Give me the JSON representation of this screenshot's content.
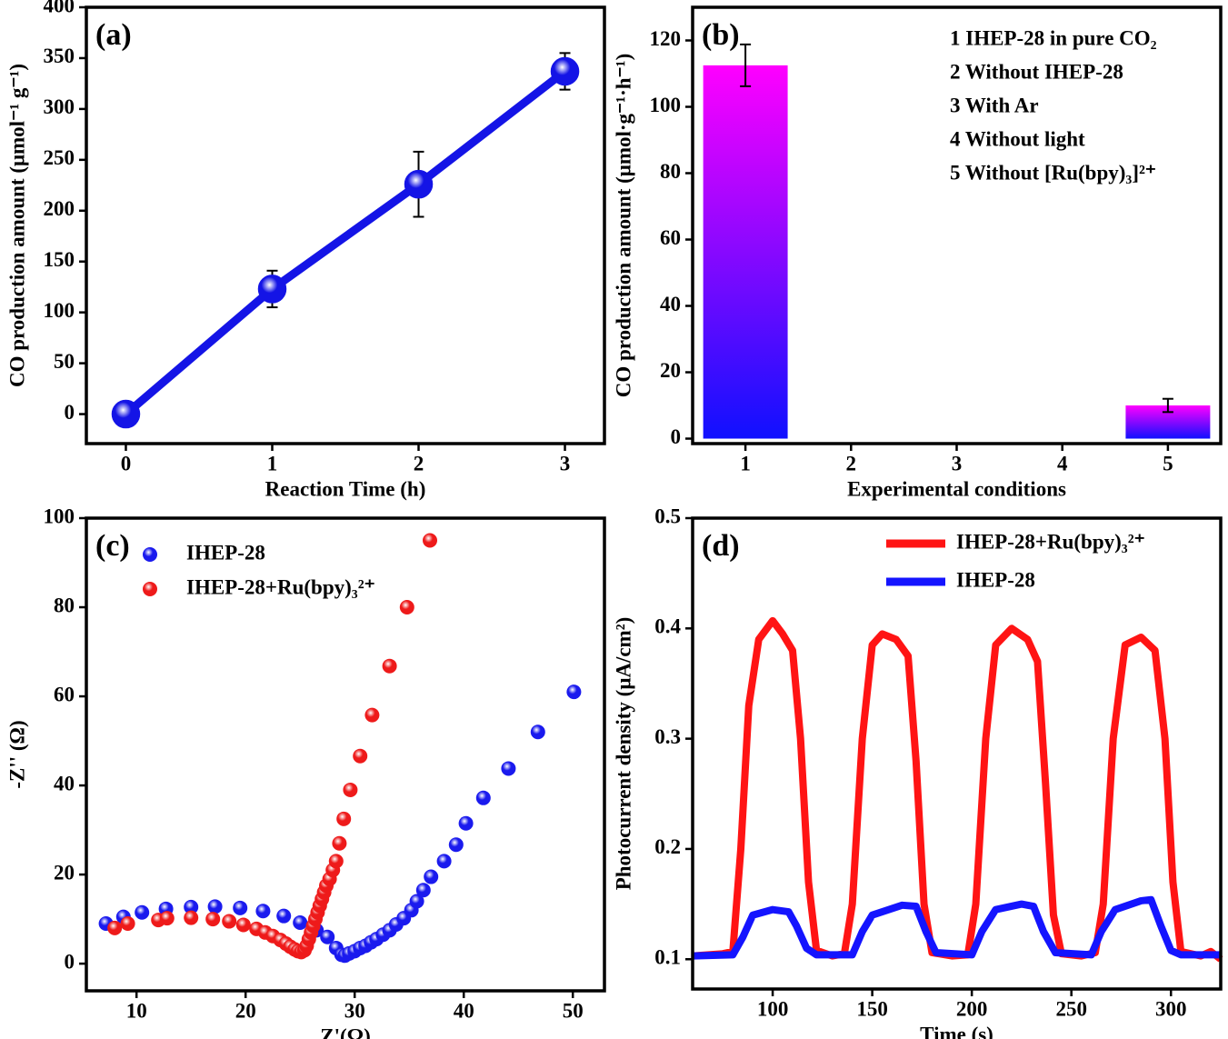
{
  "chart_data": [
    {
      "type": "line",
      "annotation": "(a)",
      "x_label": "Reaction Time (h)",
      "y_label": "CO production amount (μmol⁻¹ g⁻¹)",
      "x": [
        0,
        1,
        2,
        3
      ],
      "marker": "circle",
      "series": [
        {
          "name": "CO",
          "color": "#1414e6",
          "values": [
            0,
            123,
            226,
            337
          ],
          "errors": [
            0,
            18,
            32,
            18
          ]
        }
      ],
      "xlim": [
        -0.27,
        3.27
      ],
      "xticks": [
        0,
        1,
        2,
        3
      ],
      "ylim": [
        -29,
        400
      ],
      "yticks": [
        0,
        50,
        100,
        150,
        200,
        250,
        300,
        350,
        400
      ]
    },
    {
      "type": "bar",
      "annotation": "(b)",
      "x_label": "Experimental conditions",
      "y_label": "CO production amount (μmol·g⁻¹·h⁻¹)",
      "categories": [
        "1",
        "2",
        "3",
        "4",
        "5"
      ],
      "values": [
        112.5,
        0,
        0,
        0,
        10
      ],
      "errors": [
        6.3,
        0,
        0,
        0,
        2
      ],
      "gradient": [
        "#ff00ff",
        "#1010ff"
      ],
      "notes": [
        "1 IHEP-28 in pure CO₂",
        "2 Without IHEP-28",
        "3 With Ar",
        "4 Without light",
        "5 Without [Ru(bpy)₃]²⁺"
      ],
      "ylim": [
        -1.5,
        130
      ],
      "yticks": [
        0,
        20,
        40,
        60,
        80,
        100,
        120
      ]
    },
    {
      "type": "scatter",
      "annotation": "(c)",
      "x_label": "Z'(Ω)",
      "y_label": "-Z'' (Ω)",
      "series": [
        {
          "name": "IHEP-28",
          "color": "#1a1aee",
          "x": [
            7.2,
            8.8,
            10.5,
            12.7,
            15,
            17.2,
            19.5,
            21.6,
            23.5,
            25,
            26.5,
            27.5,
            28.3,
            28.8,
            29.1,
            29.5,
            30,
            30.5,
            31,
            31.5,
            32,
            32.6,
            33.2,
            33.8,
            34.5,
            35.2,
            35.7,
            36.3,
            37,
            38.2,
            39.3,
            40.2,
            41.8,
            44.1,
            46.8,
            50.1
          ],
          "values": [
            9,
            10.5,
            11.5,
            12.3,
            12.7,
            12.8,
            12.5,
            11.8,
            10.7,
            9.2,
            7.5,
            6,
            3.5,
            2,
            1.8,
            2.3,
            2.8,
            3.5,
            4,
            4.8,
            5.5,
            6.5,
            7.5,
            8.8,
            10.2,
            12,
            14,
            16.5,
            19.5,
            23,
            26.7,
            31.5,
            37.2,
            43.8,
            52,
            61
          ]
        },
        {
          "name": "IHEP-28+Ru(bpy)₃²⁺",
          "color": "#ee1a1a",
          "x": [
            8,
            9.2,
            12,
            12.8,
            15,
            17,
            18.5,
            19.8,
            21,
            21.8,
            22.5,
            23.2,
            23.7,
            24.1,
            24.5,
            24.8,
            25.1,
            25.4,
            25.6,
            25.8,
            26,
            26.2,
            26.4,
            26.6,
            26.8,
            27,
            27.2,
            27.4,
            27.7,
            28,
            28.3,
            28.6,
            29,
            29.6,
            30.5,
            31.6,
            33.2,
            34.8,
            36.9
          ],
          "values": [
            8,
            9,
            9.8,
            10.2,
            10.3,
            10,
            9.5,
            8.7,
            7.8,
            7,
            6.2,
            5.3,
            4.5,
            3.8,
            3.2,
            2.8,
            2.6,
            3,
            4,
            5.5,
            7,
            8.5,
            10,
            11.5,
            13,
            14.5,
            16,
            17.5,
            19,
            21,
            23,
            27,
            32.5,
            39,
            46.6,
            55.8,
            66.8,
            80,
            95
          ]
        }
      ],
      "xlim": [
        5.4,
        52.9
      ],
      "xticks": [
        10,
        20,
        30,
        40,
        50
      ],
      "ylim": [
        -6.1,
        100
      ],
      "yticks": [
        0,
        20,
        40,
        60,
        80,
        100
      ]
    },
    {
      "type": "line",
      "annotation": "(d)",
      "x_label": "Time (s)",
      "y_label": "Photocurrent density (μA/cm²)",
      "series": [
        {
          "name": "IHEP-28+Ru(bpy)₃²⁺",
          "color": "#ff1414",
          "x": [
            60,
            75,
            80,
            84,
            88,
            93,
            100,
            105,
            110,
            114,
            118,
            122,
            130,
            136,
            140,
            145,
            150,
            155,
            162,
            168,
            172,
            176,
            180,
            190,
            198,
            202,
            207,
            212,
            220,
            228,
            233,
            237,
            241,
            245,
            255,
            262,
            266,
            271,
            277,
            285,
            292,
            297,
            301,
            305,
            315,
            320,
            325
          ],
          "values": [
            0.103,
            0.105,
            0.107,
            0.2,
            0.33,
            0.39,
            0.407,
            0.395,
            0.38,
            0.3,
            0.17,
            0.108,
            0.103,
            0.105,
            0.15,
            0.3,
            0.385,
            0.395,
            0.39,
            0.375,
            0.28,
            0.15,
            0.106,
            0.103,
            0.104,
            0.15,
            0.3,
            0.385,
            0.4,
            0.39,
            0.37,
            0.26,
            0.14,
            0.105,
            0.103,
            0.106,
            0.15,
            0.3,
            0.385,
            0.392,
            0.38,
            0.3,
            0.17,
            0.107,
            0.103,
            0.107,
            0.1
          ]
        },
        {
          "name": "IHEP-28",
          "color": "#1414ff",
          "x": [
            60,
            80,
            85,
            90,
            100,
            108,
            112,
            117,
            122,
            140,
            145,
            150,
            165,
            172,
            177,
            182,
            200,
            205,
            212,
            225,
            231,
            236,
            242,
            260,
            265,
            272,
            285,
            290,
            295,
            300,
            305,
            325
          ],
          "values": [
            0.103,
            0.104,
            0.12,
            0.14,
            0.145,
            0.143,
            0.13,
            0.11,
            0.104,
            0.104,
            0.125,
            0.14,
            0.149,
            0.148,
            0.125,
            0.106,
            0.104,
            0.125,
            0.145,
            0.15,
            0.148,
            0.125,
            0.106,
            0.104,
            0.125,
            0.145,
            0.153,
            0.154,
            0.13,
            0.108,
            0.104,
            0.104
          ]
        }
      ],
      "xlim": [
        59.8,
        325
      ],
      "xticks": [
        100,
        150,
        200,
        250,
        300
      ],
      "ylim": [
        0.073,
        0.5
      ],
      "yticks": [
        0.1,
        0.2,
        0.3,
        0.4,
        0.5
      ]
    }
  ]
}
